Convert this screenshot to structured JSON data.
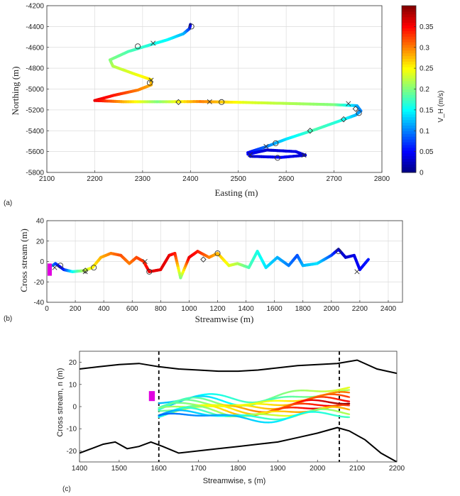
{
  "chart_data": [
    {
      "panel": "(a)",
      "type": "scatter",
      "xlabel": "Easting (m)",
      "ylabel": "Northing (m)",
      "xlim": [
        2100,
        2800
      ],
      "ylim": [
        -5800,
        -4200
      ],
      "xticks": [
        2100,
        2200,
        2300,
        2400,
        2500,
        2600,
        2700,
        2800
      ],
      "yticks": [
        -4200,
        -4400,
        -4600,
        -4800,
        -5000,
        -5200,
        -5400,
        -5600,
        -5800
      ],
      "grid": true,
      "colorbar": {
        "label": "V_H (m/s)",
        "ticks": [
          0,
          0.05,
          0.1,
          0.15,
          0.2,
          0.25,
          0.3,
          0.35
        ],
        "range": [
          0,
          0.4
        ],
        "colormap": "jet"
      },
      "track": [
        {
          "x": 2400,
          "y": -4380,
          "v": 0.02
        },
        {
          "x": 2398,
          "y": -4420,
          "v": 0.06
        },
        {
          "x": 2385,
          "y": -4470,
          "v": 0.12
        },
        {
          "x": 2350,
          "y": -4530,
          "v": 0.15
        },
        {
          "x": 2320,
          "y": -4570,
          "v": 0.16
        },
        {
          "x": 2270,
          "y": -4640,
          "v": 0.18
        },
        {
          "x": 2232,
          "y": -4720,
          "v": 0.2
        },
        {
          "x": 2238,
          "y": -4780,
          "v": 0.22
        },
        {
          "x": 2280,
          "y": -4850,
          "v": 0.24
        },
        {
          "x": 2318,
          "y": -4910,
          "v": 0.26
        },
        {
          "x": 2318,
          "y": -4960,
          "v": 0.28
        },
        {
          "x": 2290,
          "y": -5010,
          "v": 0.3
        },
        {
          "x": 2240,
          "y": -5060,
          "v": 0.34
        },
        {
          "x": 2200,
          "y": -5110,
          "v": 0.36
        },
        {
          "x": 2260,
          "y": -5122,
          "v": 0.28
        },
        {
          "x": 2330,
          "y": -5122,
          "v": 0.2
        },
        {
          "x": 2420,
          "y": -5120,
          "v": 0.3
        },
        {
          "x": 2510,
          "y": -5128,
          "v": 0.24
        },
        {
          "x": 2600,
          "y": -5138,
          "v": 0.22
        },
        {
          "x": 2700,
          "y": -5150,
          "v": 0.2
        },
        {
          "x": 2748,
          "y": -5160,
          "v": 0.12
        },
        {
          "x": 2756,
          "y": -5210,
          "v": 0.1
        },
        {
          "x": 2745,
          "y": -5250,
          "v": 0.12
        },
        {
          "x": 2715,
          "y": -5300,
          "v": 0.16
        },
        {
          "x": 2660,
          "y": -5390,
          "v": 0.18
        },
        {
          "x": 2600,
          "y": -5480,
          "v": 0.14
        },
        {
          "x": 2560,
          "y": -5550,
          "v": 0.1
        },
        {
          "x": 2520,
          "y": -5610,
          "v": 0.05
        },
        {
          "x": 2525,
          "y": -5645,
          "v": 0.03
        },
        {
          "x": 2590,
          "y": -5655,
          "v": 0.05
        },
        {
          "x": 2640,
          "y": -5635,
          "v": 0.03
        },
        {
          "x": 2620,
          "y": -5600,
          "v": 0.04
        },
        {
          "x": 2560,
          "y": -5585,
          "v": 0.03
        },
        {
          "x": 2520,
          "y": -5625,
          "v": 0.05
        }
      ],
      "markers_circle": [
        {
          "x": 2290,
          "y": -4590
        },
        {
          "x": 2402,
          "y": -4400
        },
        {
          "x": 2315,
          "y": -4940
        },
        {
          "x": 2465,
          "y": -5125
        },
        {
          "x": 2752,
          "y": -5230
        },
        {
          "x": 2578,
          "y": -5520
        },
        {
          "x": 2582,
          "y": -5660
        }
      ],
      "markers_x": [
        {
          "x": 2322,
          "y": -4560
        },
        {
          "x": 2318,
          "y": -4915
        },
        {
          "x": 2440,
          "y": -5122
        },
        {
          "x": 2730,
          "y": -5140
        },
        {
          "x": 2558,
          "y": -5550
        },
        {
          "x": 2525,
          "y": -5630
        },
        {
          "x": 2637,
          "y": -5635
        }
      ],
      "markers_diamond": [
        {
          "x": 2375,
          "y": -5125
        },
        {
          "x": 2720,
          "y": -5290
        },
        {
          "x": 2650,
          "y": -5400
        },
        {
          "x": 2745,
          "y": -5190
        }
      ]
    },
    {
      "panel": "(b)",
      "type": "scatter",
      "xlabel": "Streamwise (m)",
      "ylabel": "Cross stream (m)",
      "xlim": [
        0,
        2500
      ],
      "ylim": [
        -40,
        40
      ],
      "xticks": [
        0,
        200,
        400,
        600,
        800,
        1000,
        1200,
        1400,
        1600,
        1800,
        2000,
        2200,
        2400
      ],
      "yticks": [
        40,
        20,
        0,
        -20,
        -40
      ],
      "grid": true,
      "track": [
        {
          "x": 40,
          "y": -4,
          "v": 0.12
        },
        {
          "x": 60,
          "y": -2,
          "v": 0.08
        },
        {
          "x": 90,
          "y": -5,
          "v": 0.05
        },
        {
          "x": 120,
          "y": -8,
          "v": 0.06
        },
        {
          "x": 180,
          "y": -10,
          "v": 0.15
        },
        {
          "x": 260,
          "y": -9,
          "v": 0.22
        },
        {
          "x": 320,
          "y": -6,
          "v": 0.25
        },
        {
          "x": 380,
          "y": 4,
          "v": 0.28
        },
        {
          "x": 450,
          "y": 8,
          "v": 0.3
        },
        {
          "x": 520,
          "y": 6,
          "v": 0.32
        },
        {
          "x": 580,
          "y": -2,
          "v": 0.3
        },
        {
          "x": 630,
          "y": 4,
          "v": 0.32
        },
        {
          "x": 680,
          "y": 0,
          "v": 0.33
        },
        {
          "x": 720,
          "y": -10,
          "v": 0.36
        },
        {
          "x": 800,
          "y": -8,
          "v": 0.36
        },
        {
          "x": 860,
          "y": 6,
          "v": 0.36
        },
        {
          "x": 900,
          "y": 8,
          "v": 0.34
        },
        {
          "x": 940,
          "y": -16,
          "v": 0.2
        },
        {
          "x": 1000,
          "y": 4,
          "v": 0.36
        },
        {
          "x": 1060,
          "y": 10,
          "v": 0.34
        },
        {
          "x": 1140,
          "y": 4,
          "v": 0.3
        },
        {
          "x": 1200,
          "y": 8,
          "v": 0.28
        },
        {
          "x": 1280,
          "y": -4,
          "v": 0.24
        },
        {
          "x": 1340,
          "y": -2,
          "v": 0.22
        },
        {
          "x": 1420,
          "y": -6,
          "v": 0.18
        },
        {
          "x": 1480,
          "y": 10,
          "v": 0.16
        },
        {
          "x": 1540,
          "y": -6,
          "v": 0.14
        },
        {
          "x": 1620,
          "y": 4,
          "v": 0.12
        },
        {
          "x": 1700,
          "y": -4,
          "v": 0.1
        },
        {
          "x": 1760,
          "y": 6,
          "v": 0.08
        },
        {
          "x": 1800,
          "y": -4,
          "v": 0.12
        },
        {
          "x": 1900,
          "y": -2,
          "v": 0.14
        },
        {
          "x": 2000,
          "y": 6,
          "v": 0.08
        },
        {
          "x": 2050,
          "y": 12,
          "v": 0.04
        },
        {
          "x": 2100,
          "y": 4,
          "v": 0.03
        },
        {
          "x": 2160,
          "y": 6,
          "v": 0.04
        },
        {
          "x": 2200,
          "y": -8,
          "v": 0.05
        },
        {
          "x": 2260,
          "y": 2,
          "v": 0.06
        }
      ],
      "markers_circle": [
        {
          "x": 95,
          "y": -4
        },
        {
          "x": 330,
          "y": -6
        },
        {
          "x": 720,
          "y": -10
        },
        {
          "x": 1200,
          "y": 8
        },
        {
          "x": 2050,
          "y": 10
        }
      ],
      "markers_x": [
        {
          "x": 55,
          "y": -6
        },
        {
          "x": 270,
          "y": -10
        },
        {
          "x": 690,
          "y": 0
        },
        {
          "x": 2180,
          "y": -10
        }
      ],
      "markers_diamond": [
        {
          "x": 270,
          "y": -9
        },
        {
          "x": 1100,
          "y": 2
        }
      ]
    },
    {
      "panel": "(c)",
      "type": "line",
      "xlabel": "Streamwise, s (m)",
      "ylabel": "Cross stream, n (m)",
      "xlim": [
        1400,
        2200
      ],
      "ylim": [
        -25,
        25
      ],
      "xticks": [
        1400,
        1500,
        1600,
        1700,
        1800,
        1900,
        2000,
        2100,
        2200
      ],
      "yticks": [
        20,
        10,
        0,
        -10,
        -20
      ],
      "grid": false,
      "dashed_lines_x": [
        1600,
        2055
      ],
      "bank_upper": [
        {
          "x": 1400,
          "y": 17
        },
        {
          "x": 1450,
          "y": 18
        },
        {
          "x": 1500,
          "y": 19
        },
        {
          "x": 1550,
          "y": 19.5
        },
        {
          "x": 1600,
          "y": 18
        },
        {
          "x": 1650,
          "y": 17
        },
        {
          "x": 1700,
          "y": 16.5
        },
        {
          "x": 1750,
          "y": 16
        },
        {
          "x": 1800,
          "y": 16
        },
        {
          "x": 1850,
          "y": 16.5
        },
        {
          "x": 1900,
          "y": 17.5
        },
        {
          "x": 1950,
          "y": 18.5
        },
        {
          "x": 2000,
          "y": 19
        },
        {
          "x": 2050,
          "y": 19.5
        },
        {
          "x": 2100,
          "y": 21
        },
        {
          "x": 2150,
          "y": 17
        },
        {
          "x": 2200,
          "y": 15
        }
      ],
      "bank_lower": [
        {
          "x": 1400,
          "y": -21
        },
        {
          "x": 1430,
          "y": -19
        },
        {
          "x": 1460,
          "y": -17
        },
        {
          "x": 1490,
          "y": -16
        },
        {
          "x": 1520,
          "y": -19
        },
        {
          "x": 1550,
          "y": -18
        },
        {
          "x": 1580,
          "y": -16
        },
        {
          "x": 1610,
          "y": -18
        },
        {
          "x": 1650,
          "y": -21
        },
        {
          "x": 1700,
          "y": -20
        },
        {
          "x": 1750,
          "y": -19
        },
        {
          "x": 1800,
          "y": -18
        },
        {
          "x": 1850,
          "y": -17
        },
        {
          "x": 1900,
          "y": -16
        },
        {
          "x": 1950,
          "y": -14
        },
        {
          "x": 2000,
          "y": -12
        },
        {
          "x": 2050,
          "y": -9.5
        },
        {
          "x": 2080,
          "y": -11
        },
        {
          "x": 2120,
          "y": -15
        },
        {
          "x": 2160,
          "y": -21
        },
        {
          "x": 2200,
          "y": -25
        }
      ],
      "tracks": [
        {
          "offset": 8,
          "v": 0.22
        },
        {
          "offset": 6,
          "v": 0.2
        },
        {
          "offset": 5,
          "v": 0.28
        },
        {
          "offset": 4,
          "v": 0.3
        },
        {
          "offset": 3,
          "v": 0.32
        },
        {
          "offset": 2,
          "v": 0.36
        },
        {
          "offset": 1,
          "v": 0.34
        },
        {
          "offset": 0,
          "v": 0.36
        },
        {
          "offset": -1,
          "v": 0.3
        },
        {
          "offset": -2,
          "v": 0.26
        },
        {
          "offset": -3,
          "v": 0.2
        },
        {
          "offset": -4,
          "v": 0.16
        }
      ],
      "box_magenta": {
        "x": [
          1575,
          1590
        ],
        "y": [
          2.5,
          7
        ]
      }
    }
  ],
  "panels": {
    "a": {
      "tag": "(a)",
      "xlabel": "Easting (m)",
      "ylabel": "Northing (m)",
      "colorbar_label": "V_H (m/s)"
    },
    "b": {
      "tag": "(b)",
      "xlabel": "Streamwise (m)",
      "ylabel": "Cross stream (m)"
    },
    "c": {
      "tag": "(c)",
      "xlabel": "Streamwise, s (m)",
      "ylabel": "Cross stream, n (m)"
    }
  }
}
